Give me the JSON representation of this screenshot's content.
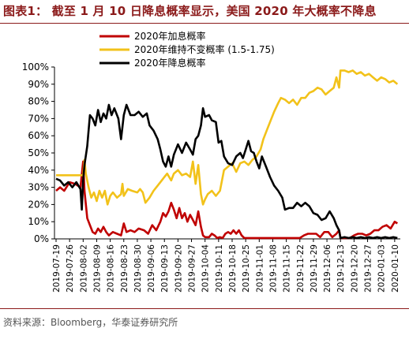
{
  "figure": {
    "title": "图表1：  截至 1 月 10 日降息概率显示，美国 2020 年大概率不降息",
    "source": "资料来源：Bloomberg，华泰证券研究所"
  },
  "chart_data": {
    "type": "line",
    "title": "",
    "xlabel": "",
    "ylabel": "",
    "ylim": [
      0,
      100
    ],
    "y_ticks": [
      "0%",
      "10%",
      "20%",
      "30%",
      "40%",
      "50%",
      "60%",
      "70%",
      "80%",
      "90%",
      "100%"
    ],
    "grid": false,
    "legend_position": "top-center",
    "x_tick_labels": [
      "2019-07-19",
      "2019-07-26",
      "2019-08-02",
      "2019-08-09",
      "2019-08-16",
      "2019-08-23",
      "2019-08-30",
      "2019-09-06",
      "2019-09-13",
      "2019-09-20",
      "2019-09-27",
      "2019-10-04",
      "2019-10-11",
      "2019-10-18",
      "2019-10-25",
      "2019-11-01",
      "2019-11-08",
      "2019-11-15",
      "2019-11-22",
      "2019-11-29",
      "2019-12-06",
      "2019-12-13",
      "2019-12-20",
      "2019-12-27",
      "2020-01-03",
      "2020-01-10"
    ],
    "series": [
      {
        "name": "2020年加息概率",
        "color": "#c00000",
        "points": [
          [
            0,
            28
          ],
          [
            0.3,
            30
          ],
          [
            0.6,
            28
          ],
          [
            1.0,
            33
          ],
          [
            1.4,
            32
          ],
          [
            1.8,
            30
          ],
          [
            2.0,
            45
          ],
          [
            2.1,
            28
          ],
          [
            2.3,
            12
          ],
          [
            2.5,
            8
          ],
          [
            2.7,
            4
          ],
          [
            2.9,
            3
          ],
          [
            3.1,
            6
          ],
          [
            3.3,
            4
          ],
          [
            3.5,
            7
          ],
          [
            3.7,
            4
          ],
          [
            3.9,
            2
          ],
          [
            4.2,
            4
          ],
          [
            4.5,
            3
          ],
          [
            4.8,
            2
          ],
          [
            5.0,
            9
          ],
          [
            5.2,
            4
          ],
          [
            5.5,
            5
          ],
          [
            5.8,
            4
          ],
          [
            6.1,
            6
          ],
          [
            6.5,
            5
          ],
          [
            6.8,
            3
          ],
          [
            7.1,
            8
          ],
          [
            7.4,
            5
          ],
          [
            7.7,
            10
          ],
          [
            7.9,
            15
          ],
          [
            8.1,
            13
          ],
          [
            8.3,
            16
          ],
          [
            8.5,
            21
          ],
          [
            8.7,
            17
          ],
          [
            8.9,
            12
          ],
          [
            9.1,
            18
          ],
          [
            9.3,
            12
          ],
          [
            9.5,
            15
          ],
          [
            9.7,
            10
          ],
          [
            9.9,
            14
          ],
          [
            10.1,
            11
          ],
          [
            10.3,
            8
          ],
          [
            10.5,
            16
          ],
          [
            10.7,
            7
          ],
          [
            10.85,
            2
          ],
          [
            11.0,
            1
          ],
          [
            11.3,
            1
          ],
          [
            11.5,
            3
          ],
          [
            11.7,
            2
          ],
          [
            11.9,
            0.5
          ],
          [
            12.1,
            1
          ],
          [
            12.3,
            0.5
          ],
          [
            12.5,
            3
          ],
          [
            12.7,
            4
          ],
          [
            12.9,
            3
          ],
          [
            13.1,
            5
          ],
          [
            13.3,
            3
          ],
          [
            13.5,
            5
          ],
          [
            13.7,
            2
          ],
          [
            13.9,
            0.5
          ],
          [
            14.5,
            0.5
          ],
          [
            15.0,
            0.5
          ],
          [
            15.5,
            0.5
          ],
          [
            16.0,
            0.5
          ],
          [
            16.5,
            0.5
          ],
          [
            17.0,
            0.5
          ],
          [
            17.5,
            0.5
          ],
          [
            18.0,
            0.5
          ],
          [
            18.3,
            2
          ],
          [
            18.6,
            3
          ],
          [
            18.9,
            3
          ],
          [
            19.2,
            3
          ],
          [
            19.5,
            1
          ],
          [
            19.8,
            4
          ],
          [
            20.1,
            4
          ],
          [
            20.4,
            1
          ],
          [
            20.7,
            3
          ],
          [
            20.9,
            5
          ],
          [
            21.0,
            0.5
          ],
          [
            21.3,
            0.5
          ],
          [
            21.7,
            0.5
          ],
          [
            22.0,
            2
          ],
          [
            22.3,
            3
          ],
          [
            22.6,
            3
          ],
          [
            22.9,
            2
          ],
          [
            23.2,
            3
          ],
          [
            23.5,
            5
          ],
          [
            23.8,
            5
          ],
          [
            24.1,
            7
          ],
          [
            24.4,
            8
          ],
          [
            24.7,
            6
          ],
          [
            25.0,
            10
          ],
          [
            25.2,
            9
          ]
        ]
      },
      {
        "name": "2020年维持不变概率 (1.5-1.75)",
        "color": "#f2c21a",
        "points": [
          [
            0,
            37
          ],
          [
            0.4,
            37
          ],
          [
            0.8,
            37
          ],
          [
            1.2,
            37
          ],
          [
            1.6,
            37
          ],
          [
            2.0,
            37
          ],
          [
            2.1,
            46
          ],
          [
            2.2,
            38
          ],
          [
            2.4,
            30
          ],
          [
            2.6,
            24
          ],
          [
            2.8,
            27
          ],
          [
            3.0,
            22
          ],
          [
            3.2,
            28
          ],
          [
            3.4,
            24
          ],
          [
            3.6,
            28
          ],
          [
            3.8,
            20
          ],
          [
            4.0,
            25
          ],
          [
            4.2,
            27
          ],
          [
            4.5,
            24
          ],
          [
            4.8,
            26
          ],
          [
            4.9,
            32
          ],
          [
            5.0,
            25
          ],
          [
            5.3,
            29
          ],
          [
            5.6,
            28
          ],
          [
            6.0,
            27
          ],
          [
            6.2,
            29
          ],
          [
            6.4,
            27
          ],
          [
            6.6,
            21
          ],
          [
            6.9,
            24
          ],
          [
            7.2,
            28
          ],
          [
            7.5,
            31
          ],
          [
            7.8,
            34
          ],
          [
            8.0,
            36
          ],
          [
            8.2,
            38
          ],
          [
            8.5,
            34
          ],
          [
            8.7,
            38
          ],
          [
            9.0,
            40
          ],
          [
            9.3,
            37
          ],
          [
            9.6,
            38
          ],
          [
            9.9,
            36
          ],
          [
            10.1,
            45
          ],
          [
            10.3,
            32
          ],
          [
            10.5,
            43
          ],
          [
            10.7,
            26
          ],
          [
            10.85,
            20
          ],
          [
            11.0,
            23
          ],
          [
            11.2,
            26
          ],
          [
            11.5,
            28
          ],
          [
            11.8,
            25
          ],
          [
            12.1,
            28
          ],
          [
            12.4,
            40
          ],
          [
            12.7,
            42
          ],
          [
            13.0,
            44
          ],
          [
            13.3,
            39
          ],
          [
            13.6,
            44
          ],
          [
            13.9,
            45
          ],
          [
            14.2,
            43
          ],
          [
            14.5,
            46
          ],
          [
            14.8,
            48
          ],
          [
            15.1,
            52
          ],
          [
            15.3,
            58
          ],
          [
            15.5,
            62
          ],
          [
            15.8,
            68
          ],
          [
            16.1,
            74
          ],
          [
            16.4,
            79
          ],
          [
            16.6,
            82
          ],
          [
            16.9,
            81
          ],
          [
            17.2,
            79
          ],
          [
            17.5,
            81
          ],
          [
            17.8,
            78
          ],
          [
            18.1,
            82
          ],
          [
            18.4,
            82
          ],
          [
            18.7,
            85
          ],
          [
            19.0,
            86
          ],
          [
            19.3,
            88
          ],
          [
            19.6,
            87
          ],
          [
            19.9,
            84
          ],
          [
            20.2,
            86
          ],
          [
            20.5,
            88
          ],
          [
            20.7,
            94
          ],
          [
            20.9,
            88
          ],
          [
            21.0,
            98
          ],
          [
            21.3,
            98
          ],
          [
            21.6,
            97
          ],
          [
            21.9,
            98
          ],
          [
            22.2,
            96
          ],
          [
            22.5,
            97
          ],
          [
            22.8,
            95
          ],
          [
            23.1,
            96
          ],
          [
            23.4,
            94
          ],
          [
            23.7,
            92
          ],
          [
            24.0,
            94
          ],
          [
            24.3,
            93
          ],
          [
            24.6,
            91
          ],
          [
            24.9,
            92
          ],
          [
            25.2,
            90
          ]
        ]
      },
      {
        "name": "2020年降息概率",
        "color": "#000000",
        "points": [
          [
            0,
            35
          ],
          [
            0.3,
            34
          ],
          [
            0.6,
            31
          ],
          [
            0.9,
            33
          ],
          [
            1.2,
            30
          ],
          [
            1.5,
            33
          ],
          [
            1.8,
            29
          ],
          [
            1.9,
            17
          ],
          [
            2.0,
            34
          ],
          [
            2.1,
            43
          ],
          [
            2.3,
            54
          ],
          [
            2.5,
            72
          ],
          [
            2.7,
            70
          ],
          [
            2.9,
            66
          ],
          [
            3.1,
            75
          ],
          [
            3.3,
            68
          ],
          [
            3.5,
            73
          ],
          [
            3.7,
            70
          ],
          [
            3.9,
            78
          ],
          [
            4.1,
            72
          ],
          [
            4.3,
            76
          ],
          [
            4.6,
            70
          ],
          [
            4.8,
            58
          ],
          [
            5.0,
            72
          ],
          [
            5.2,
            78
          ],
          [
            5.5,
            72
          ],
          [
            5.8,
            72
          ],
          [
            6.1,
            74
          ],
          [
            6.4,
            71
          ],
          [
            6.7,
            73
          ],
          [
            6.9,
            66
          ],
          [
            7.2,
            63
          ],
          [
            7.5,
            58
          ],
          [
            7.7,
            52
          ],
          [
            7.9,
            45
          ],
          [
            8.1,
            42
          ],
          [
            8.3,
            48
          ],
          [
            8.5,
            42
          ],
          [
            8.7,
            49
          ],
          [
            9.0,
            55
          ],
          [
            9.3,
            50
          ],
          [
            9.6,
            56
          ],
          [
            9.9,
            52
          ],
          [
            10.1,
            49
          ],
          [
            10.3,
            58
          ],
          [
            10.5,
            60
          ],
          [
            10.7,
            66
          ],
          [
            10.85,
            76
          ],
          [
            11.0,
            71
          ],
          [
            11.3,
            72
          ],
          [
            11.5,
            69
          ],
          [
            11.8,
            68
          ],
          [
            12.0,
            56
          ],
          [
            12.2,
            57
          ],
          [
            12.4,
            48
          ],
          [
            12.7,
            44
          ],
          [
            13.0,
            43
          ],
          [
            13.3,
            48
          ],
          [
            13.6,
            50
          ],
          [
            13.8,
            47
          ],
          [
            14.0,
            52
          ],
          [
            14.2,
            57
          ],
          [
            14.4,
            51
          ],
          [
            14.6,
            50
          ],
          [
            14.8,
            45
          ],
          [
            15.0,
            41
          ],
          [
            15.2,
            48
          ],
          [
            15.5,
            42
          ],
          [
            15.8,
            36
          ],
          [
            16.1,
            31
          ],
          [
            16.4,
            28
          ],
          [
            16.7,
            24
          ],
          [
            16.9,
            17
          ],
          [
            17.2,
            18
          ],
          [
            17.5,
            18
          ],
          [
            17.8,
            21
          ],
          [
            18.1,
            19
          ],
          [
            18.4,
            21
          ],
          [
            18.7,
            19
          ],
          [
            19.0,
            15
          ],
          [
            19.3,
            14
          ],
          [
            19.6,
            11
          ],
          [
            19.9,
            12
          ],
          [
            20.2,
            16
          ],
          [
            20.5,
            12
          ],
          [
            20.7,
            8
          ],
          [
            20.9,
            5
          ],
          [
            21.0,
            0.5
          ],
          [
            21.3,
            1
          ],
          [
            21.6,
            0.5
          ],
          [
            21.9,
            1
          ],
          [
            22.2,
            0.5
          ],
          [
            22.5,
            1
          ],
          [
            22.8,
            0.5
          ],
          [
            23.1,
            1
          ],
          [
            23.4,
            0.5
          ],
          [
            23.7,
            1
          ],
          [
            24.0,
            0.5
          ],
          [
            24.3,
            1
          ],
          [
            24.6,
            0.5
          ],
          [
            24.9,
            1
          ],
          [
            25.2,
            0.5
          ]
        ]
      }
    ]
  }
}
